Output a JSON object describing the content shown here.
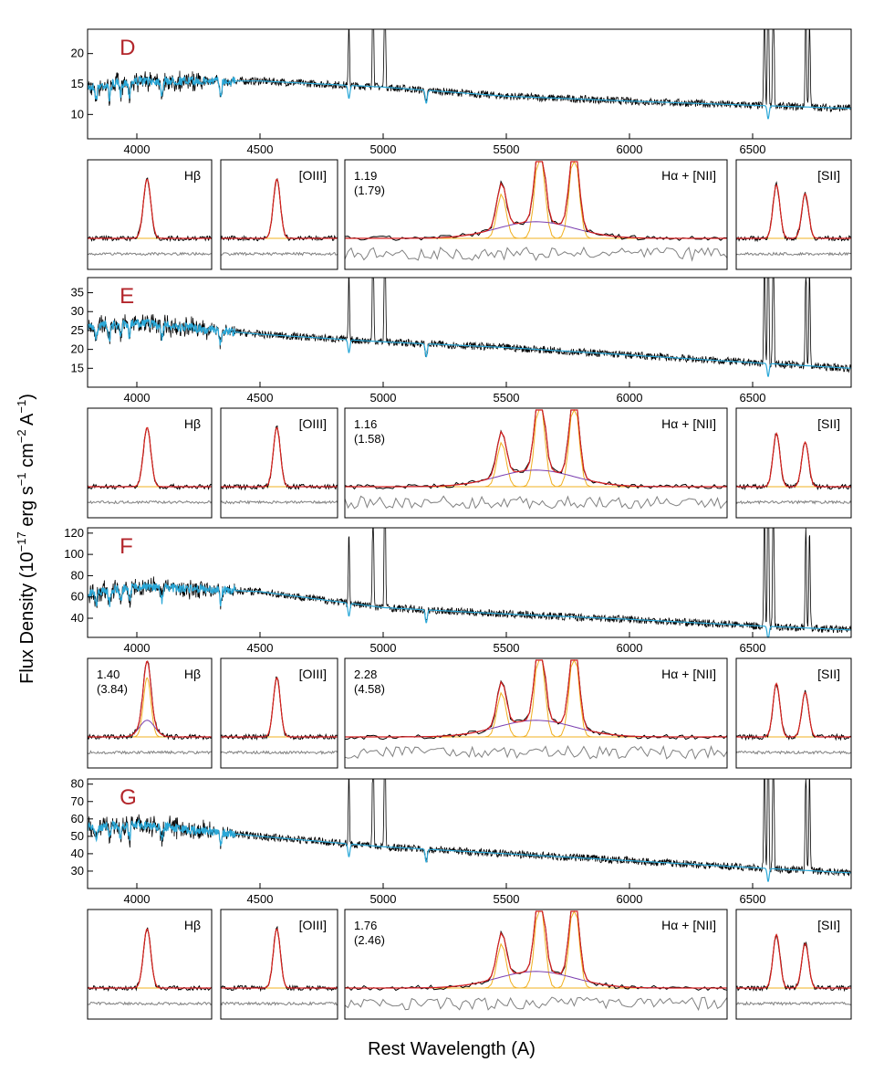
{
  "chart_data": {
    "type": "line",
    "xlabel": "Rest Wavelength (A)",
    "ylabel": "Flux Density (10^-17 erg s^-1 cm^-2 A^-1)",
    "ylabel_parts": {
      "a": "Flux Density (10",
      "b": "−17",
      "c": " erg s",
      "d": "−1",
      "e": " cm",
      "f": "−2",
      "g": " A",
      "h": "−1",
      "i": ")"
    },
    "xlim": [
      3800,
      6900
    ],
    "xticks": [
      4000,
      4500,
      5000,
      5500,
      6000,
      6500
    ],
    "series_legend": [
      "observed spectrum (black)",
      "stellar continuum model (blue)"
    ],
    "panels": [
      {
        "label": "D",
        "ylim": [
          6,
          24
        ],
        "yticks": [
          10,
          15,
          20
        ],
        "continuum": {
          "x": [
            3800,
            4000,
            4500,
            5000,
            5500,
            6000,
            6500,
            6900
          ],
          "y": [
            14.5,
            15.5,
            15.5,
            14.5,
            13.0,
            12.2,
            11.5,
            11.0
          ]
        },
        "subplots": [
          {
            "title": "Hβ",
            "flux_ratio": "",
            "flux_ratio_paren": ""
          },
          {
            "title": "[OIII]",
            "flux_ratio": "",
            "flux_ratio_paren": ""
          },
          {
            "title": "Hα + [NII]",
            "flux_ratio": "1.19",
            "flux_ratio_paren": "(1.79)"
          },
          {
            "title": "[SII]",
            "flux_ratio": "",
            "flux_ratio_paren": ""
          }
        ]
      },
      {
        "label": "E",
        "ylim": [
          10,
          39
        ],
        "yticks": [
          15,
          20,
          25,
          30,
          35
        ],
        "continuum": {
          "x": [
            3800,
            4000,
            4500,
            5000,
            5500,
            6000,
            6500,
            6900
          ],
          "y": [
            26.0,
            27.0,
            24.0,
            22.0,
            20.5,
            18.5,
            16.5,
            15.0
          ]
        },
        "subplots": [
          {
            "title": "Hβ",
            "flux_ratio": "",
            "flux_ratio_paren": ""
          },
          {
            "title": "[OIII]",
            "flux_ratio": "",
            "flux_ratio_paren": ""
          },
          {
            "title": "Hα + [NII]",
            "flux_ratio": "1.16",
            "flux_ratio_paren": "(1.58)"
          },
          {
            "title": "[SII]",
            "flux_ratio": "",
            "flux_ratio_paren": ""
          }
        ]
      },
      {
        "label": "F",
        "ylim": [
          22,
          125
        ],
        "yticks": [
          40,
          60,
          80,
          100,
          120
        ],
        "continuum": {
          "x": [
            3800,
            4000,
            4500,
            5000,
            5500,
            6000,
            6500,
            6900
          ],
          "y": [
            63,
            70,
            65,
            50,
            44,
            39,
            33,
            29
          ]
        },
        "subplots": [
          {
            "title": "Hβ",
            "flux_ratio": "1.40",
            "flux_ratio_paren": "(3.84)"
          },
          {
            "title": "[OIII]",
            "flux_ratio": "",
            "flux_ratio_paren": ""
          },
          {
            "title": "Hα + [NII]",
            "flux_ratio": "2.28",
            "flux_ratio_paren": "(4.58)"
          },
          {
            "title": "[SII]",
            "flux_ratio": "",
            "flux_ratio_paren": ""
          }
        ]
      },
      {
        "label": "G",
        "ylim": [
          20,
          83
        ],
        "yticks": [
          30,
          40,
          50,
          60,
          70,
          80
        ],
        "continuum": {
          "x": [
            3800,
            4000,
            4500,
            5000,
            5500,
            6000,
            6500,
            6900
          ],
          "y": [
            55,
            57,
            50,
            44,
            40,
            36,
            32,
            29
          ]
        },
        "subplots": [
          {
            "title": "Hβ",
            "flux_ratio": "",
            "flux_ratio_paren": ""
          },
          {
            "title": "[OIII]",
            "flux_ratio": "",
            "flux_ratio_paren": ""
          },
          {
            "title": "Hα + [NII]",
            "flux_ratio": "1.76",
            "flux_ratio_paren": "(2.46)"
          },
          {
            "title": "[SII]",
            "flux_ratio": "",
            "flux_ratio_paren": ""
          }
        ]
      }
    ]
  },
  "colors": {
    "observed": "#000000",
    "model": "#2aa8d8",
    "total_fit": "#d62020",
    "broad_component": "#7b3fb0",
    "narrow_components": "#f0b020",
    "residual": "#808080",
    "panel_label": "#b3262b"
  }
}
